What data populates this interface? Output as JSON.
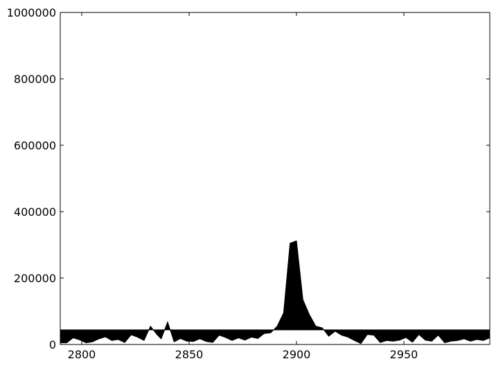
{
  "chart_data": {
    "type": "area",
    "title": "",
    "xlabel": "",
    "ylabel": "",
    "xlim": [
      2790,
      2990
    ],
    "ylim": [
      0,
      1000000
    ],
    "grid": false,
    "x_ticks": [
      2800,
      2850,
      2900,
      2950
    ],
    "x_tick_labels": [
      "2800",
      "2850",
      "2900",
      "2950"
    ],
    "y_ticks": [
      0,
      200000,
      400000,
      600000,
      800000,
      1000000
    ],
    "y_tick_labels": [
      "0",
      "200000",
      "400000",
      "600000",
      "800000",
      "1000000"
    ],
    "baseline": 44000,
    "series": [
      {
        "fill_color": "#000000",
        "x": [
          2790,
          2793,
          2796,
          2799,
          2802,
          2805,
          2808,
          2811,
          2814,
          2817,
          2820,
          2823,
          2826,
          2829,
          2832,
          2835,
          2837,
          2840,
          2843,
          2846,
          2849,
          2852,
          2855,
          2858,
          2861,
          2864,
          2867,
          2870,
          2873,
          2876,
          2879,
          2882,
          2885,
          2888,
          2891,
          2894,
          2897,
          2900,
          2903,
          2906,
          2909,
          2912,
          2915,
          2918,
          2921,
          2924,
          2927,
          2930,
          2933,
          2936,
          2939,
          2942,
          2945,
          2948,
          2951,
          2954,
          2957,
          2960,
          2963,
          2966,
          2969,
          2972,
          2975,
          2978,
          2981,
          2984,
          2987,
          2990
        ],
        "values": [
          5000,
          5000,
          20000,
          14000,
          5000,
          8000,
          17000,
          23000,
          12000,
          15000,
          6000,
          29000,
          22000,
          12000,
          55000,
          30000,
          17000,
          68000,
          8000,
          18000,
          10000,
          9000,
          17000,
          9000,
          6000,
          28000,
          21000,
          12000,
          20000,
          13000,
          22000,
          18000,
          33000,
          35000,
          55000,
          95000,
          305000,
          312000,
          135000,
          90000,
          55000,
          50000,
          25000,
          40000,
          28000,
          22000,
          12000,
          3000,
          30000,
          28000,
          6000,
          12000,
          10000,
          13000,
          21000,
          7000,
          30000,
          13000,
          10000,
          28000,
          5000,
          10000,
          12000,
          17000,
          10000,
          15000,
          12000,
          20000
        ]
      }
    ]
  }
}
